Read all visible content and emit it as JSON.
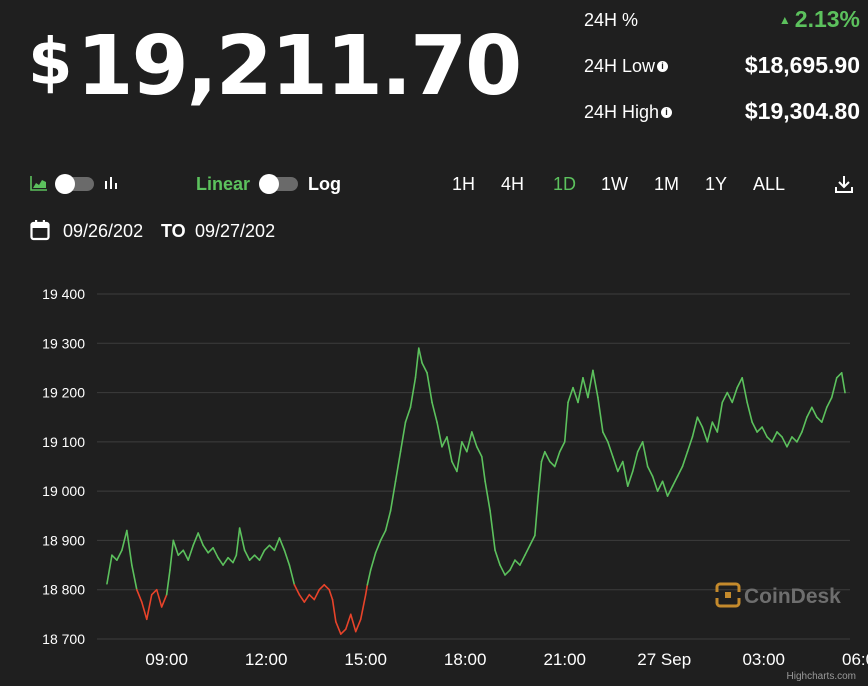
{
  "header": {
    "currency_symbol": "$",
    "price": "19,211.70"
  },
  "stats": {
    "pct_label": "24H %",
    "pct_value": "2.13%",
    "low_label": "24H Low",
    "low_value": "$18,695.90",
    "high_label": "24H High",
    "high_value": "$19,304.80",
    "info_glyph": "i",
    "up_glyph": "▲"
  },
  "controls": {
    "scale_linear": "Linear",
    "scale_log": "Log",
    "ranges": [
      "1H",
      "4H",
      "1D",
      "1W",
      "1M",
      "1Y",
      "ALL"
    ],
    "active_range": "1D",
    "date_from": "09/26/202",
    "date_sep": "TO",
    "date_to": "09/27/202"
  },
  "colors": {
    "background": "#1f1f1f",
    "up": "#5cc15d",
    "down": "#e8432a",
    "grid": "#3d3d3d",
    "watermark": "#c48a2c"
  },
  "watermark": {
    "text": "CoinDesk"
  },
  "credits": "Highcharts.com",
  "chart_data": {
    "type": "line",
    "title": "",
    "xlabel": "",
    "ylabel": "",
    "x_ticks": [
      "09:00",
      "12:00",
      "15:00",
      "18:00",
      "21:00",
      "27 Sep",
      "03:00",
      "06:00"
    ],
    "y_ticks": [
      "19 400",
      "19 300",
      "19 200",
      "19 100",
      "19 000",
      "18 900",
      "18 800",
      "18 700"
    ],
    "ylim": [
      18700,
      19400
    ],
    "x_unit": "hours since 00:00 on 26 Sep",
    "xlim": [
      6.9,
      29.6
    ],
    "baseline": 18812,
    "grid": true,
    "legend": "none",
    "series": [
      {
        "values": [
          [
            7.2,
            18812
          ],
          [
            7.35,
            18870
          ],
          [
            7.5,
            18860
          ],
          [
            7.65,
            18880
          ],
          [
            7.8,
            18920
          ],
          [
            7.95,
            18850
          ],
          [
            8.1,
            18800
          ],
          [
            8.25,
            18775
          ],
          [
            8.4,
            18740
          ],
          [
            8.55,
            18790
          ],
          [
            8.7,
            18800
          ],
          [
            8.85,
            18765
          ],
          [
            9.0,
            18790
          ],
          [
            9.1,
            18840
          ],
          [
            9.2,
            18900
          ],
          [
            9.35,
            18870
          ],
          [
            9.5,
            18880
          ],
          [
            9.65,
            18860
          ],
          [
            9.8,
            18890
          ],
          [
            9.95,
            18915
          ],
          [
            10.1,
            18890
          ],
          [
            10.25,
            18875
          ],
          [
            10.4,
            18885
          ],
          [
            10.55,
            18865
          ],
          [
            10.7,
            18850
          ],
          [
            10.85,
            18865
          ],
          [
            11.0,
            18855
          ],
          [
            11.1,
            18870
          ],
          [
            11.2,
            18925
          ],
          [
            11.35,
            18880
          ],
          [
            11.5,
            18860
          ],
          [
            11.65,
            18870
          ],
          [
            11.8,
            18860
          ],
          [
            11.95,
            18880
          ],
          [
            12.1,
            18890
          ],
          [
            12.25,
            18880
          ],
          [
            12.4,
            18905
          ],
          [
            12.55,
            18880
          ],
          [
            12.7,
            18850
          ],
          [
            12.85,
            18810
          ],
          [
            13.0,
            18790
          ],
          [
            13.15,
            18775
          ],
          [
            13.3,
            18790
          ],
          [
            13.45,
            18780
          ],
          [
            13.6,
            18800
          ],
          [
            13.75,
            18810
          ],
          [
            13.9,
            18800
          ],
          [
            14.0,
            18780
          ],
          [
            14.1,
            18735
          ],
          [
            14.25,
            18710
          ],
          [
            14.4,
            18720
          ],
          [
            14.55,
            18750
          ],
          [
            14.7,
            18715
          ],
          [
            14.85,
            18740
          ],
          [
            15.0,
            18790
          ],
          [
            15.05,
            18810
          ],
          [
            15.15,
            18840
          ],
          [
            15.3,
            18875
          ],
          [
            15.45,
            18900
          ],
          [
            15.6,
            18920
          ],
          [
            15.75,
            18960
          ],
          [
            15.9,
            19020
          ],
          [
            16.05,
            19080
          ],
          [
            16.2,
            19140
          ],
          [
            16.35,
            19170
          ],
          [
            16.5,
            19230
          ],
          [
            16.6,
            19290
          ],
          [
            16.7,
            19260
          ],
          [
            16.85,
            19240
          ],
          [
            17.0,
            19180
          ],
          [
            17.15,
            19140
          ],
          [
            17.3,
            19090
          ],
          [
            17.45,
            19110
          ],
          [
            17.6,
            19060
          ],
          [
            17.75,
            19040
          ],
          [
            17.9,
            19100
          ],
          [
            18.05,
            19080
          ],
          [
            18.2,
            19120
          ],
          [
            18.35,
            19090
          ],
          [
            18.5,
            19070
          ],
          [
            18.6,
            19020
          ],
          [
            18.75,
            18960
          ],
          [
            18.9,
            18880
          ],
          [
            19.05,
            18850
          ],
          [
            19.2,
            18830
          ],
          [
            19.35,
            18840
          ],
          [
            19.5,
            18860
          ],
          [
            19.65,
            18850
          ],
          [
            19.8,
            18870
          ],
          [
            19.95,
            18890
          ],
          [
            20.1,
            18910
          ],
          [
            20.2,
            18990
          ],
          [
            20.3,
            19060
          ],
          [
            20.4,
            19080
          ],
          [
            20.55,
            19060
          ],
          [
            20.7,
            19050
          ],
          [
            20.85,
            19080
          ],
          [
            21.0,
            19100
          ],
          [
            21.1,
            19180
          ],
          [
            21.25,
            19210
          ],
          [
            21.4,
            19180
          ],
          [
            21.55,
            19230
          ],
          [
            21.7,
            19190
          ],
          [
            21.85,
            19245
          ],
          [
            22.0,
            19190
          ],
          [
            22.15,
            19120
          ],
          [
            22.3,
            19100
          ],
          [
            22.45,
            19070
          ],
          [
            22.6,
            19040
          ],
          [
            22.75,
            19060
          ],
          [
            22.9,
            19010
          ],
          [
            23.05,
            19040
          ],
          [
            23.2,
            19080
          ],
          [
            23.35,
            19100
          ],
          [
            23.5,
            19050
          ],
          [
            23.65,
            19030
          ],
          [
            23.8,
            19000
          ],
          [
            23.95,
            19020
          ],
          [
            24.1,
            18990
          ],
          [
            24.25,
            19010
          ],
          [
            24.4,
            19030
          ],
          [
            24.55,
            19050
          ],
          [
            24.7,
            19080
          ],
          [
            24.85,
            19110
          ],
          [
            25.0,
            19150
          ],
          [
            25.15,
            19130
          ],
          [
            25.3,
            19100
          ],
          [
            25.45,
            19140
          ],
          [
            25.6,
            19120
          ],
          [
            25.75,
            19180
          ],
          [
            25.9,
            19200
          ],
          [
            26.05,
            19180
          ],
          [
            26.2,
            19210
          ],
          [
            26.35,
            19230
          ],
          [
            26.5,
            19180
          ],
          [
            26.65,
            19140
          ],
          [
            26.8,
            19120
          ],
          [
            26.95,
            19130
          ],
          [
            27.1,
            19110
          ],
          [
            27.25,
            19100
          ],
          [
            27.4,
            19120
          ],
          [
            27.55,
            19110
          ],
          [
            27.7,
            19090
          ],
          [
            27.85,
            19110
          ],
          [
            28.0,
            19100
          ],
          [
            28.15,
            19120
          ],
          [
            28.3,
            19150
          ],
          [
            28.45,
            19170
          ],
          [
            28.6,
            19150
          ],
          [
            28.75,
            19140
          ],
          [
            28.9,
            19170
          ],
          [
            29.05,
            19190
          ],
          [
            29.2,
            19230
          ],
          [
            29.35,
            19240
          ],
          [
            29.45,
            19200
          ]
        ]
      }
    ]
  }
}
